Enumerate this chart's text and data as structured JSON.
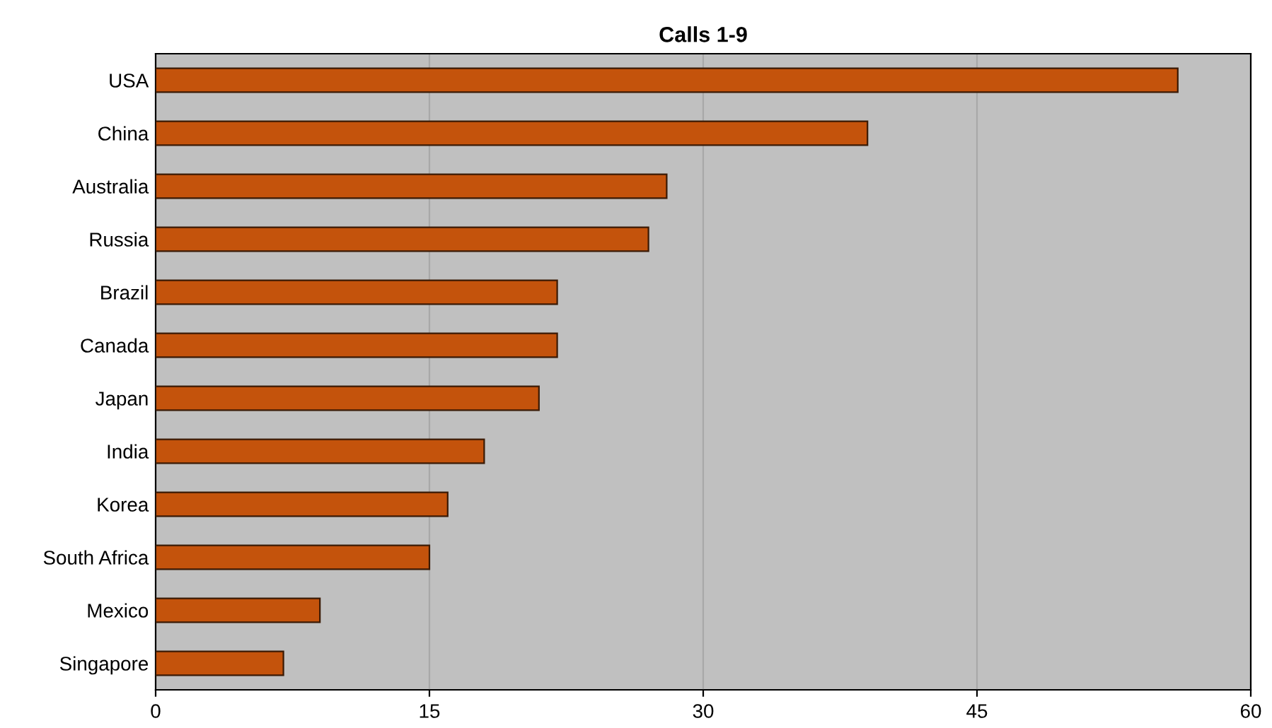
{
  "chart_data": {
    "type": "bar",
    "orientation": "horizontal",
    "title": "Calls 1-9",
    "categories": [
      "USA",
      "China",
      "Australia",
      "Russia",
      "Brazil",
      "Canada",
      "Japan",
      "India",
      "Korea",
      "South Africa",
      "Mexico",
      "Singapore"
    ],
    "values": [
      56,
      39,
      28,
      27,
      22,
      22,
      21,
      18,
      16,
      15,
      9,
      7
    ],
    "color": "#c4530c",
    "xlim": [
      0,
      60
    ],
    "xticks": [
      0,
      15,
      30,
      45,
      60
    ],
    "grid": "x"
  }
}
